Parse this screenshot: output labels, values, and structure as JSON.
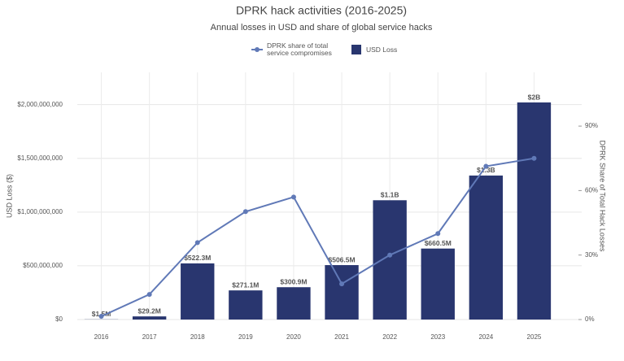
{
  "chart_data": {
    "type": "bar_line",
    "title": "DPRK hack activities (2016-2025)",
    "subtitle": "Annual losses in USD and share of global service hacks",
    "ylabel": "USD Loss ($)",
    "y2label": "DPRK Share of Total Hack Losses",
    "categories": [
      "2016",
      "2017",
      "2018",
      "2019",
      "2020",
      "2021",
      "2022",
      "2023",
      "2024",
      "2025"
    ],
    "series": [
      {
        "name": "DPRK share of total service compromises",
        "type": "line",
        "axis": "y2",
        "color": "#6079b7",
        "values": [
          1.5,
          11.7,
          35.8,
          50.2,
          57,
          16.6,
          30,
          40,
          71.3,
          75
        ]
      },
      {
        "name": "USD Loss",
        "type": "bar",
        "color": "#29366f",
        "values": [
          1500000,
          29200000,
          522300000,
          271100000,
          300900000,
          506500000,
          1110000000,
          660500000,
          1340000000,
          2020000000
        ],
        "value_labels": [
          "$1.5M",
          "$29.2M",
          "$522.3M",
          "$271.1M",
          "$300.9M",
          "$506.5M",
          "$1.1B",
          "$660.5M",
          "$1.3B",
          "$2B"
        ]
      }
    ],
    "ylim": [
      0,
      2300000000
    ],
    "yticks": [
      {
        "value": 0,
        "label": "$0"
      },
      {
        "value": 500000000,
        "label": "$500,000,000"
      },
      {
        "value": 1000000000,
        "label": "$1,000,000,000"
      },
      {
        "value": 1500000000,
        "label": "$1,500,000,000"
      },
      {
        "value": 2000000000,
        "label": "$2,000,000,000"
      }
    ],
    "y2lim": [
      0,
      115
    ],
    "y2ticks": [
      {
        "value": 0,
        "label": "0%"
      },
      {
        "value": 30,
        "label": "30%"
      },
      {
        "value": 60,
        "label": "60%"
      },
      {
        "value": 90,
        "label": "90%"
      }
    ],
    "grid": true,
    "legend": "top"
  }
}
